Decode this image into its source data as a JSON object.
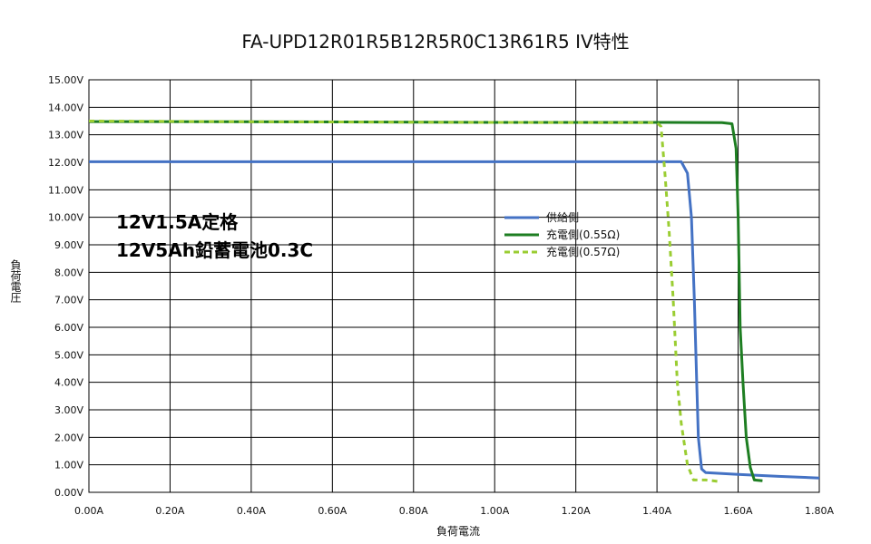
{
  "chart_data": {
    "type": "line",
    "title": "FA-UPD12R01R5B12R5R0C13R61R5 IV特性",
    "xlabel": "負荷電流",
    "ylabel": "負荷電圧",
    "xlim": [
      0,
      1.8
    ],
    "ylim": [
      0,
      15
    ],
    "x_ticks": [
      "0.00A",
      "0.20A",
      "0.40A",
      "0.60A",
      "0.80A",
      "1.00A",
      "1.20A",
      "1.40A",
      "1.60A",
      "1.80A"
    ],
    "y_ticks": [
      "0.00V",
      "1.00V",
      "2.00V",
      "3.00V",
      "4.00V",
      "5.00V",
      "6.00V",
      "7.00V",
      "8.00V",
      "9.00V",
      "10.00V",
      "11.00V",
      "12.00V",
      "13.00V",
      "14.00V",
      "15.00V"
    ],
    "grid": true,
    "legend_position": "center-right",
    "annotations": [
      "12V1.5A定格",
      "12V5Ah鉛蓄電池0.3C"
    ],
    "series": [
      {
        "name": "供給側",
        "color": "#4472C4",
        "style": "solid",
        "points": [
          [
            0,
            12.02
          ],
          [
            0.5,
            12.02
          ],
          [
            1.0,
            12.02
          ],
          [
            1.4,
            12.02
          ],
          [
            1.46,
            12.02
          ],
          [
            1.475,
            11.6
          ],
          [
            1.485,
            10.0
          ],
          [
            1.492,
            7.0
          ],
          [
            1.498,
            4.0
          ],
          [
            1.502,
            2.0
          ],
          [
            1.51,
            0.85
          ],
          [
            1.52,
            0.72
          ],
          [
            1.6,
            0.65
          ],
          [
            1.7,
            0.58
          ],
          [
            1.8,
            0.52
          ]
        ]
      },
      {
        "name": "充電側(0.55Ω)",
        "color": "#1E7E22",
        "style": "solid",
        "points": [
          [
            0,
            13.48
          ],
          [
            0.5,
            13.47
          ],
          [
            1.0,
            13.45
          ],
          [
            1.42,
            13.45
          ],
          [
            1.56,
            13.44
          ],
          [
            1.585,
            13.4
          ],
          [
            1.595,
            12.5
          ],
          [
            1.6,
            10.0
          ],
          [
            1.605,
            6.0
          ],
          [
            1.612,
            4.0
          ],
          [
            1.62,
            2.0
          ],
          [
            1.63,
            0.9
          ],
          [
            1.64,
            0.45
          ],
          [
            1.66,
            0.42
          ]
        ]
      },
      {
        "name": "充電側(0.57Ω)",
        "color": "#9ACD32",
        "style": "dashed",
        "points": [
          [
            0,
            13.5
          ],
          [
            0.5,
            13.47
          ],
          [
            1.0,
            13.45
          ],
          [
            1.4,
            13.44
          ],
          [
            1.41,
            13.3
          ],
          [
            1.42,
            11.5
          ],
          [
            1.43,
            9.5
          ],
          [
            1.44,
            7.0
          ],
          [
            1.45,
            4.0
          ],
          [
            1.46,
            2.5
          ],
          [
            1.475,
            1.0
          ],
          [
            1.49,
            0.45
          ],
          [
            1.52,
            0.45
          ],
          [
            1.55,
            0.4
          ]
        ]
      }
    ]
  }
}
